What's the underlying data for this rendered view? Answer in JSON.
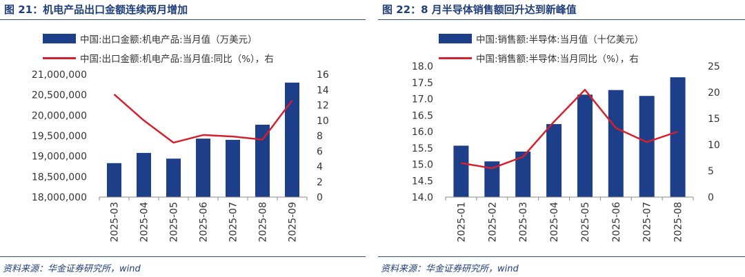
{
  "panels": [
    {
      "title": "图 21：机电产品出口金额连续两月增加",
      "source": "资料来源：华金证券研究所，wind",
      "chart_data": {
        "type": "bar",
        "categories": [
          "2025-03",
          "2025-04",
          "2025-05",
          "2025-06",
          "2025-07",
          "2025-08",
          "2025-09"
        ],
        "series": [
          {
            "name": "中国:出口金额:机电产品:当月值（万美元）",
            "kind": "bar",
            "axis": "left",
            "values": [
              18830000,
              19080000,
              18940000,
              19430000,
              19400000,
              19770000,
              20800000
            ],
            "color": "#1d3f8a"
          },
          {
            "name": "中国:出口金额:机电产品:当月值:同比（%），右",
            "kind": "line",
            "axis": "right",
            "values": [
              13.4,
              10.0,
              7.1,
              8.1,
              7.9,
              7.5,
              12.6
            ],
            "color": "#d61f2c"
          }
        ],
        "ylim_left": [
          18000000,
          21000000
        ],
        "yticks_left": [
          "18,000,000",
          "18,500,000",
          "19,000,000",
          "19,500,000",
          "20,000,000",
          "20,500,000",
          "21,000,000"
        ],
        "ylim_right": [
          0,
          16
        ],
        "yticks_right": [
          "0",
          "2",
          "4",
          "6",
          "8",
          "10",
          "12",
          "14",
          "16"
        ]
      }
    },
    {
      "title": "图 22：8 月半导体销售额回升达到新峰值",
      "source": "资料来源：华金证券研究所，wind",
      "chart_data": {
        "type": "bar",
        "categories": [
          "2025-01",
          "2025-02",
          "2025-03",
          "2025-04",
          "2025-05",
          "2025-06",
          "2025-07",
          "2025-08"
        ],
        "series": [
          {
            "name": "中国:销售额:半导体:当月值（十亿美元）",
            "kind": "bar",
            "axis": "left",
            "values": [
              15.57,
              15.09,
              15.39,
              16.23,
              17.13,
              17.27,
              17.09,
              17.66
            ],
            "color": "#1d3f8a"
          },
          {
            "name": "中国:销售额:半导体:当月同比（%），右",
            "kind": "line",
            "axis": "right",
            "values": [
              6.5,
              5.5,
              7.7,
              14.4,
              20.5,
              13.2,
              10.5,
              12.5
            ],
            "color": "#d61f2c"
          }
        ],
        "ylim_left": [
          14.0,
          18.0
        ],
        "yticks_left": [
          "14.0",
          "14.5",
          "15.0",
          "15.5",
          "16.0",
          "16.5",
          "17.0",
          "17.5",
          "18.0"
        ],
        "ylim_right": [
          0,
          25
        ],
        "yticks_right": [
          "0",
          "5",
          "10",
          "15",
          "20",
          "25"
        ]
      }
    }
  ]
}
